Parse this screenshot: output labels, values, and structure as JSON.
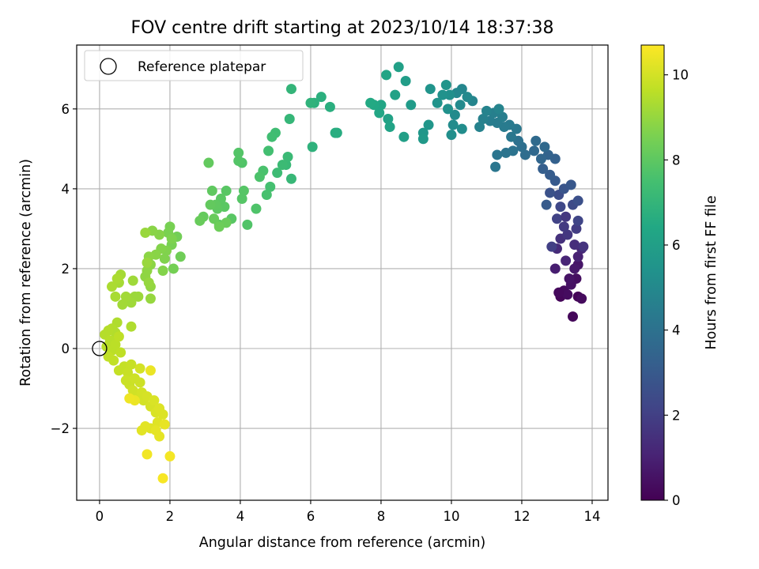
{
  "chart_data": {
    "type": "scatter",
    "title": "FOV centre drift starting at 2023/10/14 18:37:38",
    "xlabel": "Angular distance from reference (arcmin)",
    "ylabel": "Rotation from reference (arcmin)",
    "xlim": [
      -0.65,
      14.45
    ],
    "ylim": [
      -3.8,
      7.6
    ],
    "xticks": [
      0,
      2,
      4,
      6,
      8,
      10,
      12,
      14
    ],
    "yticks": [
      -2,
      0,
      2,
      4,
      6
    ],
    "xtick_labels": [
      "0",
      "2",
      "4",
      "6",
      "8",
      "10",
      "12",
      "14"
    ],
    "ytick_labels": [
      "−2",
      "0",
      "2",
      "4",
      "6"
    ],
    "grid": true,
    "legend": {
      "position": "top-left",
      "label": "Reference platepar"
    },
    "reference_point": {
      "x": 0,
      "y": 0
    },
    "colorbar": {
      "label": "Hours from first FF file",
      "range": [
        0,
        10.7
      ],
      "ticks": [
        0,
        2,
        4,
        6,
        8,
        10
      ],
      "tick_labels": [
        "0",
        "2",
        "4",
        "6",
        "8",
        "10"
      ],
      "colormap": "viridis"
    },
    "points": [
      [
        13.6,
        1.3,
        0.1
      ],
      [
        13.45,
        0.8,
        0.2
      ],
      [
        13.1,
        1.3,
        0.15
      ],
      [
        13.2,
        1.45,
        0.3
      ],
      [
        13.55,
        1.75,
        0.4
      ],
      [
        13.4,
        1.6,
        0.5
      ],
      [
        13.6,
        2.1,
        0.6
      ],
      [
        13.3,
        1.35,
        0.35
      ],
      [
        13.05,
        1.4,
        0.25
      ],
      [
        13.7,
        1.25,
        0.3
      ],
      [
        13.35,
        1.75,
        0.55
      ],
      [
        13.5,
        2.0,
        0.7
      ],
      [
        12.95,
        2.0,
        0.9
      ],
      [
        13.6,
        2.3,
        1.0
      ],
      [
        13.25,
        2.2,
        1.1
      ],
      [
        13.7,
        2.5,
        1.2
      ],
      [
        13.0,
        2.5,
        1.3
      ],
      [
        13.5,
        2.6,
        1.4
      ],
      [
        13.1,
        2.75,
        1.5
      ],
      [
        13.75,
        2.55,
        1.6
      ],
      [
        13.3,
        2.85,
        1.7
      ],
      [
        13.2,
        3.05,
        1.8
      ],
      [
        13.55,
        3.0,
        1.9
      ],
      [
        12.85,
        2.55,
        2.0
      ],
      [
        13.0,
        3.25,
        2.1
      ],
      [
        13.6,
        3.2,
        2.2
      ],
      [
        13.1,
        3.55,
        2.3
      ],
      [
        13.45,
        3.6,
        2.4
      ],
      [
        13.05,
        3.85,
        2.5
      ],
      [
        13.6,
        3.7,
        2.6
      ],
      [
        12.8,
        3.9,
        2.7
      ],
      [
        13.2,
        4.0,
        2.8
      ],
      [
        13.4,
        4.1,
        2.9
      ],
      [
        12.95,
        4.2,
        3.0
      ],
      [
        12.7,
        3.6,
        3.05
      ],
      [
        13.25,
        3.3,
        1.75
      ],
      [
        12.8,
        4.35,
        3.1
      ],
      [
        12.6,
        4.5,
        3.2
      ],
      [
        12.95,
        4.75,
        3.3
      ],
      [
        12.75,
        4.85,
        3.4
      ],
      [
        12.55,
        4.75,
        3.5
      ],
      [
        12.35,
        4.95,
        3.6
      ],
      [
        12.65,
        5.05,
        3.65
      ],
      [
        12.4,
        5.2,
        3.7
      ],
      [
        12.1,
        4.85,
        3.8
      ],
      [
        12.0,
        5.05,
        3.9
      ],
      [
        11.9,
        5.2,
        4.0
      ],
      [
        11.75,
        4.95,
        4.05
      ],
      [
        11.55,
        4.9,
        4.1
      ],
      [
        11.3,
        4.85,
        4.15
      ],
      [
        11.25,
        4.55,
        4.2
      ],
      [
        11.7,
        5.3,
        4.25
      ],
      [
        11.85,
        5.5,
        4.3
      ],
      [
        11.65,
        5.6,
        4.35
      ],
      [
        11.5,
        5.55,
        4.4
      ],
      [
        11.3,
        5.65,
        4.45
      ],
      [
        11.1,
        5.7,
        4.5
      ],
      [
        11.45,
        5.8,
        4.55
      ],
      [
        11.2,
        5.9,
        4.6
      ],
      [
        10.9,
        5.75,
        4.65
      ],
      [
        10.8,
        5.55,
        4.7
      ],
      [
        11.0,
        5.95,
        4.75
      ],
      [
        11.35,
        6.0,
        4.8
      ],
      [
        10.6,
        6.2,
        4.85
      ],
      [
        10.3,
        6.5,
        4.9
      ],
      [
        10.15,
        6.4,
        4.95
      ],
      [
        10.45,
        6.3,
        5.0
      ],
      [
        10.25,
        6.1,
        5.05
      ],
      [
        10.1,
        5.85,
        5.1
      ],
      [
        10.05,
        5.6,
        5.15
      ],
      [
        10.3,
        5.5,
        5.2
      ],
      [
        10.0,
        5.35,
        5.25
      ],
      [
        9.95,
        6.35,
        5.3
      ],
      [
        9.9,
        6.0,
        5.35
      ],
      [
        9.75,
        6.35,
        5.4
      ],
      [
        9.6,
        6.15,
        5.45
      ],
      [
        9.4,
        6.5,
        5.5
      ],
      [
        9.85,
        6.6,
        5.55
      ],
      [
        9.35,
        5.6,
        5.6
      ],
      [
        9.2,
        5.4,
        5.65
      ],
      [
        9.2,
        5.25,
        5.7
      ],
      [
        8.85,
        6.1,
        5.8
      ],
      [
        8.7,
        6.7,
        5.9
      ],
      [
        8.65,
        5.3,
        6.0
      ],
      [
        8.5,
        7.05,
        6.05
      ],
      [
        8.4,
        6.35,
        6.1
      ],
      [
        8.2,
        5.75,
        6.15
      ],
      [
        8.25,
        5.55,
        6.2
      ],
      [
        8.15,
        6.85,
        6.25
      ],
      [
        8.0,
        6.1,
        6.3
      ],
      [
        7.95,
        5.9,
        6.35
      ],
      [
        7.8,
        6.1,
        6.4
      ],
      [
        7.7,
        6.15,
        6.45
      ],
      [
        6.75,
        5.4,
        6.6
      ],
      [
        6.7,
        5.4,
        6.65
      ],
      [
        6.55,
        6.05,
        6.7
      ],
      [
        6.3,
        6.3,
        6.75
      ],
      [
        6.1,
        6.15,
        6.8
      ],
      [
        6.05,
        5.05,
        6.85
      ],
      [
        6.0,
        6.15,
        6.9
      ],
      [
        5.45,
        6.5,
        7.0
      ],
      [
        5.4,
        5.75,
        7.05
      ],
      [
        5.45,
        4.25,
        7.1
      ],
      [
        5.3,
        4.6,
        7.15
      ],
      [
        5.35,
        4.8,
        7.2
      ],
      [
        5.2,
        4.6,
        7.25
      ],
      [
        5.05,
        4.4,
        7.3
      ],
      [
        5.0,
        5.4,
        7.35
      ],
      [
        4.9,
        5.3,
        7.4
      ],
      [
        4.8,
        4.95,
        7.45
      ],
      [
        4.85,
        4.05,
        7.5
      ],
      [
        4.75,
        3.85,
        7.55
      ],
      [
        4.65,
        4.45,
        7.6
      ],
      [
        4.55,
        4.3,
        7.65
      ],
      [
        4.45,
        3.5,
        7.7
      ],
      [
        4.2,
        3.1,
        7.75
      ],
      [
        4.05,
        4.65,
        7.75
      ],
      [
        3.95,
        4.7,
        7.8
      ],
      [
        3.95,
        4.9,
        7.8
      ],
      [
        4.05,
        3.75,
        7.85
      ],
      [
        4.1,
        3.95,
        7.85
      ],
      [
        3.75,
        3.25,
        7.9
      ],
      [
        3.6,
        3.95,
        7.9
      ],
      [
        3.55,
        3.55,
        7.95
      ],
      [
        3.45,
        3.75,
        7.95
      ],
      [
        3.4,
        3.1,
        8.0
      ],
      [
        3.35,
        3.5,
        8.0
      ],
      [
        3.3,
        3.6,
        8.05
      ],
      [
        3.2,
        3.95,
        8.05
      ],
      [
        3.15,
        3.6,
        8.1
      ],
      [
        3.1,
        4.65,
        8.1
      ],
      [
        2.95,
        3.3,
        8.15
      ],
      [
        2.85,
        3.2,
        8.2
      ],
      [
        3.25,
        3.25,
        8.2
      ],
      [
        3.6,
        3.15,
        8.25
      ],
      [
        3.4,
        3.05,
        8.3
      ],
      [
        2.3,
        2.3,
        8.35
      ],
      [
        2.2,
        2.8,
        8.4
      ],
      [
        2.1,
        2.0,
        8.45
      ],
      [
        2.0,
        3.05,
        8.5
      ],
      [
        2.05,
        2.6,
        8.5
      ],
      [
        1.95,
        2.9,
        8.55
      ],
      [
        2.05,
        2.75,
        8.6
      ],
      [
        1.9,
        2.45,
        8.65
      ],
      [
        1.85,
        2.25,
        8.65
      ],
      [
        1.8,
        1.95,
        8.7
      ],
      [
        1.75,
        2.5,
        8.7
      ],
      [
        1.7,
        2.85,
        8.75
      ],
      [
        1.6,
        2.35,
        8.8
      ],
      [
        1.5,
        2.95,
        8.8
      ],
      [
        1.45,
        2.1,
        8.85
      ],
      [
        1.4,
        2.3,
        8.85
      ],
      [
        1.35,
        1.95,
        8.9
      ],
      [
        1.3,
        1.8,
        8.9
      ],
      [
        1.45,
        1.55,
        8.95
      ],
      [
        1.45,
        1.25,
        9.0
      ],
      [
        1.4,
        1.65,
        9.0
      ],
      [
        1.35,
        2.15,
        9.05
      ],
      [
        1.3,
        2.9,
        9.05
      ],
      [
        1.1,
        1.3,
        9.1
      ],
      [
        1.0,
        1.3,
        9.1
      ],
      [
        0.95,
        1.7,
        9.15
      ],
      [
        0.9,
        1.15,
        9.15
      ],
      [
        0.75,
        1.3,
        9.2
      ],
      [
        0.65,
        1.1,
        9.2
      ],
      [
        0.6,
        1.85,
        9.25
      ],
      [
        0.55,
        1.65,
        9.25
      ],
      [
        0.45,
        1.3,
        9.3
      ],
      [
        0.5,
        1.75,
        9.35
      ],
      [
        0.35,
        1.55,
        9.35
      ],
      [
        0.9,
        0.55,
        9.4
      ],
      [
        0.5,
        0.65,
        9.4
      ],
      [
        0.45,
        0.4,
        9.45
      ],
      [
        0.35,
        0.5,
        9.45
      ],
      [
        0.25,
        0.45,
        9.5
      ],
      [
        0.15,
        0.35,
        9.5
      ],
      [
        0.3,
        0.2,
        9.55
      ],
      [
        0.2,
        0.05,
        9.55
      ],
      [
        0.35,
        -0.05,
        9.6
      ],
      [
        0.45,
        0.1,
        9.6
      ],
      [
        0.55,
        0.3,
        9.65
      ],
      [
        0.6,
        -0.1,
        9.65
      ],
      [
        0.25,
        -0.2,
        9.7
      ],
      [
        0.4,
        -0.3,
        9.7
      ],
      [
        0.7,
        -0.45,
        9.75
      ],
      [
        0.55,
        -0.55,
        9.75
      ],
      [
        0.8,
        -0.6,
        9.8
      ],
      [
        0.9,
        -0.4,
        9.8
      ],
      [
        0.75,
        -0.8,
        9.85
      ],
      [
        0.85,
        -0.9,
        9.85
      ],
      [
        1.0,
        -0.75,
        9.9
      ],
      [
        1.15,
        -0.85,
        9.9
      ],
      [
        0.95,
        -1.05,
        9.95
      ],
      [
        1.05,
        -1.2,
        9.95
      ],
      [
        1.2,
        -1.1,
        10.0
      ],
      [
        1.25,
        -1.3,
        10.0
      ],
      [
        1.35,
        -1.2,
        10.05
      ],
      [
        1.45,
        -1.45,
        10.05
      ],
      [
        1.55,
        -1.3,
        10.1
      ],
      [
        1.6,
        -1.6,
        10.1
      ],
      [
        1.7,
        -1.5,
        10.15
      ],
      [
        1.8,
        -1.65,
        10.15
      ],
      [
        1.65,
        -1.85,
        10.2
      ],
      [
        1.45,
        -2.0,
        10.2
      ],
      [
        1.3,
        -1.95,
        10.25
      ],
      [
        1.2,
        -2.05,
        10.25
      ],
      [
        1.6,
        -2.05,
        10.3
      ],
      [
        1.7,
        -2.2,
        10.3
      ],
      [
        1.85,
        -1.9,
        10.35
      ],
      [
        1.45,
        -0.55,
        10.4
      ],
      [
        1.0,
        -1.3,
        10.4
      ],
      [
        0.85,
        -1.25,
        10.45
      ],
      [
        1.35,
        -2.65,
        10.5
      ],
      [
        2.0,
        -2.7,
        10.55
      ],
      [
        1.8,
        -3.25,
        10.6
      ],
      [
        1.15,
        -0.5,
        10.0
      ]
    ]
  }
}
